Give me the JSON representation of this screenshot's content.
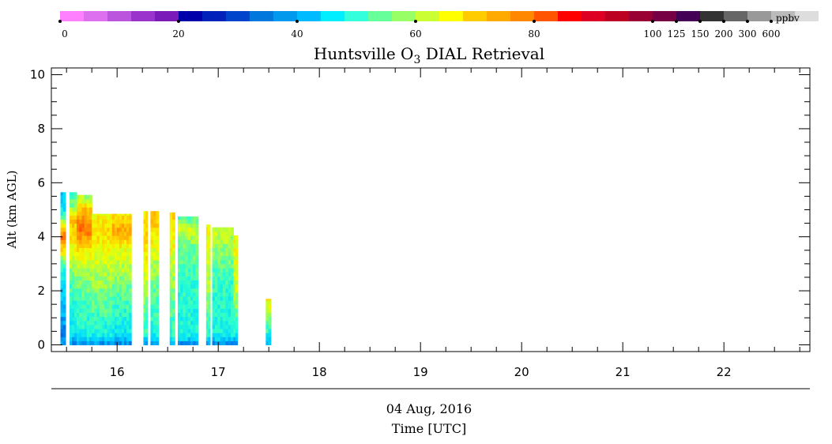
{
  "colorbar": {
    "colors": [
      "#ff80ff",
      "#dd70ee",
      "#bb55dd",
      "#9933cc",
      "#7a1ab8",
      "#0000aa",
      "#0022bb",
      "#0044cc",
      "#0077dd",
      "#0099ee",
      "#00bbff",
      "#00eeff",
      "#33ffdd",
      "#66ff99",
      "#99ff66",
      "#ccff33",
      "#ffff00",
      "#ffcc00",
      "#ffaa00",
      "#ff8800",
      "#ff5500",
      "#ff0000",
      "#dd0022",
      "#bb0022",
      "#990033",
      "#770044",
      "#440055",
      "#333333",
      "#666666",
      "#999999",
      "#bbbbbb",
      "#dddddd"
    ],
    "tick_labels": [
      "0",
      "20",
      "40",
      "60",
      "80",
      "100",
      "125",
      "150",
      "200",
      "300",
      "600"
    ],
    "unit": "ppbv"
  },
  "chart_data": {
    "type": "heatmap",
    "title": "Huntsville O₃ DIAL Retrieval",
    "title_parts": {
      "pre": "Huntsville O",
      "sub": "3",
      "post": " DIAL Retrieval"
    },
    "ylabel": "Alt (km AGL)",
    "xlabel": "Time [UTC]",
    "date_label": "04 Aug, 2016",
    "xlim": [
      15.35,
      22.85
    ],
    "ylim": [
      -0.25,
      10.25
    ],
    "x_ticks": [
      16,
      17,
      18,
      19,
      20,
      21,
      22
    ],
    "x_tick_labels": [
      "16",
      "17",
      "18",
      "19",
      "20",
      "21",
      "22"
    ],
    "y_ticks": [
      0,
      2,
      4,
      6,
      8,
      10
    ],
    "y_tick_labels": [
      "0",
      "2",
      "4",
      "6",
      "8",
      "10"
    ],
    "segments": [
      {
        "t0": 15.44,
        "t1": 15.49,
        "top": 5.65,
        "profile": [
          [
            0,
            36
          ],
          [
            0.3,
            32
          ],
          [
            2.0,
            38
          ],
          [
            3.0,
            46
          ],
          [
            4.0,
            70
          ],
          [
            5.0,
            40
          ],
          [
            5.65,
            36
          ]
        ]
      },
      {
        "t0": 15.53,
        "t1": 15.6,
        "top": 5.65,
        "profile": [
          [
            0,
            32
          ],
          [
            0.4,
            40
          ],
          [
            2.2,
            46
          ],
          [
            3.6,
            56
          ],
          [
            4.6,
            62
          ],
          [
            5.2,
            48
          ],
          [
            5.65,
            46
          ]
        ]
      },
      {
        "t0": 15.6,
        "t1": 15.75,
        "top": 5.55,
        "profile": [
          [
            0,
            32
          ],
          [
            0.4,
            42
          ],
          [
            2.2,
            48
          ],
          [
            3.5,
            58
          ],
          [
            4.3,
            70
          ],
          [
            5.0,
            62
          ],
          [
            5.55,
            50
          ]
        ]
      },
      {
        "t0": 15.75,
        "t1": 15.95,
        "top": 4.85,
        "profile": [
          [
            0,
            32
          ],
          [
            0.4,
            42
          ],
          [
            2.2,
            50
          ],
          [
            3.5,
            56
          ],
          [
            4.3,
            60
          ],
          [
            4.85,
            56
          ]
        ]
      },
      {
        "t0": 15.95,
        "t1": 16.14,
        "top": 4.85,
        "profile": [
          [
            0,
            32
          ],
          [
            0.4,
            40
          ],
          [
            2.2,
            48
          ],
          [
            3.5,
            56
          ],
          [
            4.3,
            64
          ],
          [
            4.85,
            58
          ]
        ]
      },
      {
        "t0": 16.26,
        "t1": 16.3,
        "top": 4.95,
        "profile": [
          [
            0,
            32
          ],
          [
            0.4,
            44
          ],
          [
            2.2,
            52
          ],
          [
            4.0,
            60
          ],
          [
            4.95,
            58
          ]
        ]
      },
      {
        "t0": 16.33,
        "t1": 16.41,
        "top": 4.95,
        "profile": [
          [
            0,
            32
          ],
          [
            0.4,
            42
          ],
          [
            2.2,
            48
          ],
          [
            4.0,
            58
          ],
          [
            4.95,
            62
          ]
        ]
      },
      {
        "t0": 16.52,
        "t1": 16.57,
        "top": 4.9,
        "profile": [
          [
            0,
            32
          ],
          [
            0.4,
            44
          ],
          [
            2.2,
            50
          ],
          [
            4.0,
            58
          ],
          [
            4.9,
            60
          ]
        ]
      },
      {
        "t0": 16.6,
        "t1": 16.8,
        "top": 4.75,
        "profile": [
          [
            0,
            32
          ],
          [
            0.4,
            42
          ],
          [
            2.2,
            44
          ],
          [
            3.6,
            48
          ],
          [
            4.3,
            54
          ],
          [
            4.75,
            46
          ]
        ]
      },
      {
        "t0": 16.88,
        "t1": 16.92,
        "top": 4.45,
        "profile": [
          [
            0,
            32
          ],
          [
            0.4,
            44
          ],
          [
            2.2,
            52
          ],
          [
            4.45,
            56
          ]
        ]
      },
      {
        "t0": 16.94,
        "t1": 17.15,
        "top": 4.35,
        "profile": [
          [
            0,
            32
          ],
          [
            0.4,
            42
          ],
          [
            2.2,
            44
          ],
          [
            3.5,
            50
          ],
          [
            4.35,
            54
          ]
        ]
      },
      {
        "t0": 17.15,
        "t1": 17.19,
        "top": 4.05,
        "profile": [
          [
            0,
            32
          ],
          [
            0.4,
            42
          ],
          [
            2.2,
            54
          ],
          [
            4.05,
            56
          ]
        ]
      },
      {
        "t0": 17.47,
        "t1": 17.52,
        "top": 1.7,
        "profile": [
          [
            0,
            34
          ],
          [
            0.5,
            44
          ],
          [
            1.7,
            58
          ]
        ]
      }
    ]
  }
}
